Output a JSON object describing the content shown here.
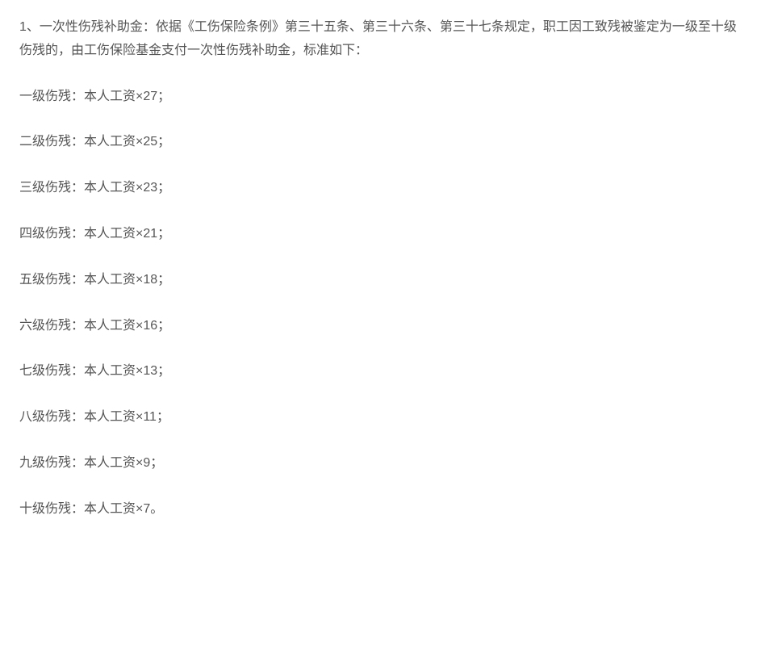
{
  "text_color": "#555555",
  "background_color": "#ffffff",
  "font_size": 16,
  "line_height": 1.8,
  "intro": "1、一次性伤残补助金：依据《工伤保险条例》第三十五条、第三十六条、第三十七条规定，职工因工致残被鉴定为一级至十级伤残的，由工伤保险基金支付一次性伤残补助金，标准如下：",
  "levels": [
    {
      "text": "一级伤残：本人工资×27；"
    },
    {
      "text": "二级伤残：本人工资×25；"
    },
    {
      "text": "三级伤残：本人工资×23；"
    },
    {
      "text": "四级伤残：本人工资×21；"
    },
    {
      "text": "五级伤残：本人工资×18；"
    },
    {
      "text": "六级伤残：本人工资×16；"
    },
    {
      "text": "七级伤残：本人工资×13；"
    },
    {
      "text": "八级伤残：本人工资×11；"
    },
    {
      "text": "九级伤残：本人工资×9；"
    },
    {
      "text": "十级伤残：本人工资×7。"
    }
  ]
}
